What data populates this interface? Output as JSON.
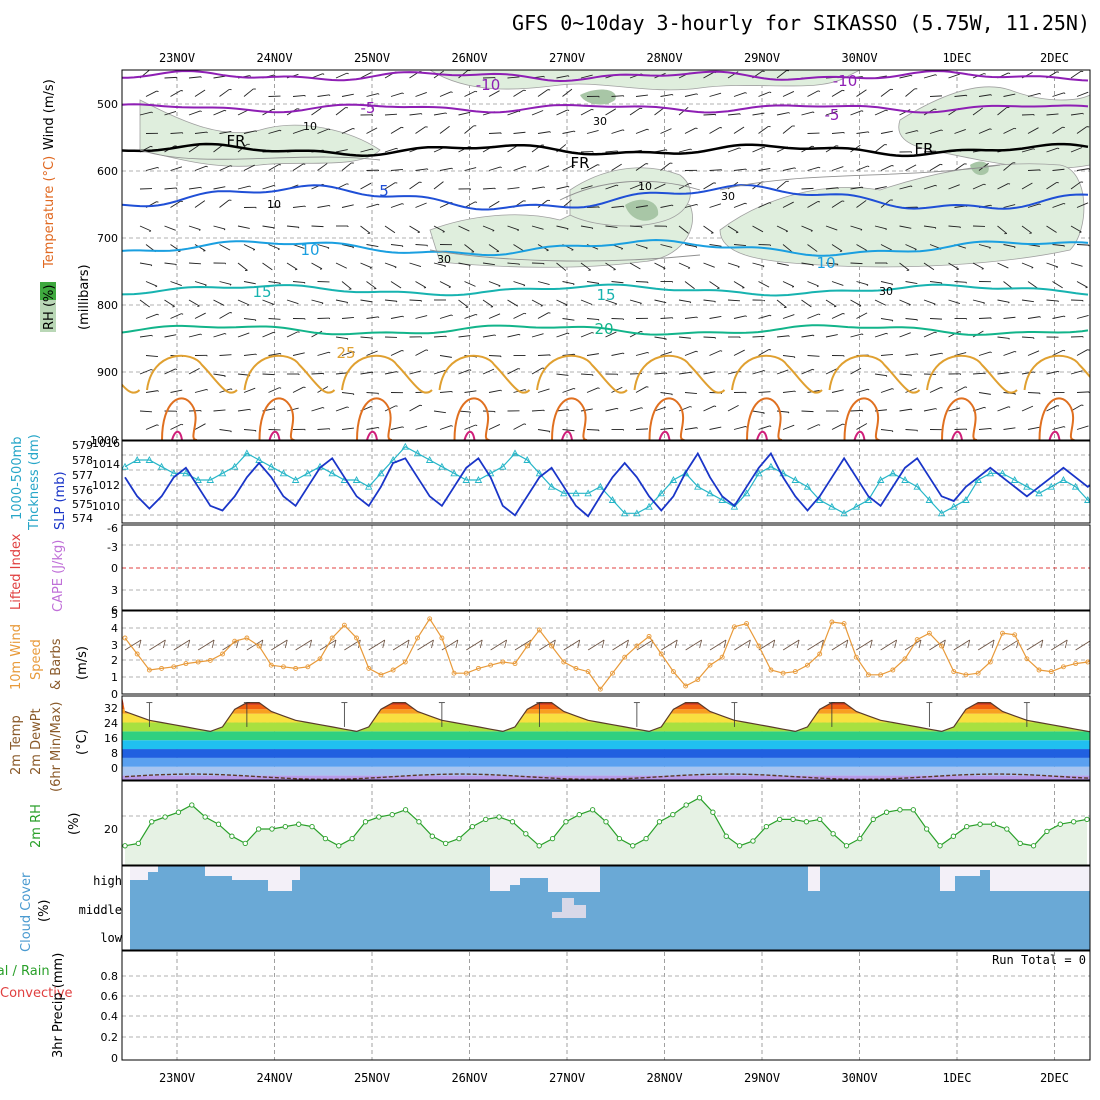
{
  "title": "GFS 0~10day 3-hourly for SIKASSO (5.75W, 11.25N)",
  "date_labels": [
    "23NOV",
    "24NOV",
    "25NOV",
    "26NOV",
    "27NOV",
    "28NOV",
    "29NOV",
    "30NOV",
    "1DEC",
    "2DEC"
  ],
  "colors": {
    "purple": "#8e1fb4",
    "black": "#000000",
    "blue": "#1f4fd6",
    "lightblue": "#1a9fe0",
    "teal": "#17b3b0",
    "green": "#12b48a",
    "orange": "#e0a030",
    "darkorange": "#e07020",
    "magenta": "#d0207a",
    "rh_fill": "#dfeedd",
    "rh_dark": "#a8c6a6",
    "cloud": "#6aa9d6",
    "cloud_empty": "#f3f0f8",
    "slp": "#1a35c8",
    "thick": "#27b6c8",
    "wind": "#e89a3a",
    "rh2m": "#2aa02a"
  },
  "panels": {
    "upper": {
      "ylabel_wind": "Wind (m/s)",
      "ylabel_temp": "Temperature (°C)",
      "ylabel_rh": "RH (%)",
      "ylabel_units": "(millibars)",
      "yticks": [
        "500",
        "600",
        "700",
        "800",
        "900",
        "1000"
      ],
      "contours": [
        {
          "level": "-10",
          "color": "purple",
          "labels": [
            "-10",
            "-10"
          ]
        },
        {
          "level": "-5",
          "color": "purple",
          "labels": [
            "-5",
            "-5"
          ]
        },
        {
          "level": "FR",
          "color": "black",
          "labels": [
            "FR",
            "FR",
            "FR"
          ]
        },
        {
          "level": "5",
          "color": "blue",
          "labels": [
            "5"
          ]
        },
        {
          "level": "10",
          "color": "lightblue",
          "labels": [
            "10",
            "10"
          ]
        },
        {
          "level": "15",
          "color": "teal",
          "labels": [
            "15",
            "15"
          ]
        },
        {
          "level": "20",
          "color": "green",
          "labels": [
            "20"
          ]
        },
        {
          "level": "25",
          "color": "orange",
          "labels": [
            "25"
          ]
        }
      ],
      "rh_labels": [
        "10",
        "30",
        "10",
        "30",
        "10",
        "30",
        "30"
      ]
    },
    "thickness": {
      "ylabel_a": "1000-500mb",
      "ylabel_b": "Thckness (dm)",
      "ylabel_c": "SLP (mb)",
      "yticks_left": [
        "574",
        "575",
        "576",
        "577",
        "578",
        "579"
      ],
      "yticks_right": [
        "1010",
        "1012",
        "1014",
        "1016"
      ]
    },
    "cape": {
      "ylabel_a": "Lifted Index",
      "ylabel_b": "CAPE (J/kg)",
      "yticks": [
        "-6",
        "-3",
        "0",
        "3",
        "6"
      ]
    },
    "wind10m": {
      "ylabel_a": "10m Wind",
      "ylabel_b": "Speed",
      "ylabel_c": "& Barbs",
      "ylabel_units": "(m/s)",
      "yticks": [
        "0",
        "1",
        "2",
        "3",
        "4",
        "5"
      ]
    },
    "temp2m": {
      "ylabel_a": "2m Temp",
      "ylabel_b": "2m DewPt",
      "ylabel_c": "(6hr Min/Max)",
      "ylabel_units": "(°C)",
      "yticks": [
        "0",
        "8",
        "16",
        "24",
        "32"
      ]
    },
    "rh2m": {
      "ylabel_a": "2m RH",
      "ylabel_units": "(%)",
      "yticks": [
        "20"
      ]
    },
    "cloud": {
      "ylabel_a": "Cloud Cover",
      "ylabel_units": "(%)",
      "levels": [
        "high",
        "middle",
        "low"
      ]
    },
    "precip": {
      "ylabel_a": "Total / Rain",
      "ylabel_b": "Convective",
      "ylabel_c": "3hr Precip (mm)",
      "yticks": [
        "0",
        "0.2",
        "0.4",
        "0.6",
        "0.8"
      ],
      "run_total": "Run Total = 0"
    }
  },
  "chart_data": [
    {
      "type": "line",
      "name": "slp",
      "x": "3-hourly steps from 22NOV 12Z",
      "ylabel": "SLP (mb)",
      "ylim": [
        1008.5,
        1016.5
      ],
      "values": [
        1013,
        1011,
        1009.7,
        1011,
        1013,
        1014,
        1012,
        1010,
        1009.5,
        1011,
        1013,
        1014.5,
        1013,
        1011,
        1010,
        1012,
        1014,
        1015,
        1013,
        1011,
        1010,
        1012,
        1014.5,
        1015,
        1013,
        1011,
        1010,
        1012,
        1014,
        1015,
        1013,
        1010,
        1009,
        1011,
        1013,
        1014,
        1012,
        1010,
        1008.9,
        1011,
        1013,
        1014.5,
        1013,
        1011,
        1009.5,
        1011,
        1013.5,
        1015.5,
        1013,
        1011,
        1010,
        1012,
        1014,
        1015.5,
        1013,
        1011,
        1009.5,
        1011,
        1013,
        1015,
        1013,
        1011,
        1010,
        1012,
        1014,
        1015,
        1013,
        1011,
        1010.5,
        1012,
        1013,
        1014,
        1013,
        1012,
        1011,
        1012,
        1013,
        1014,
        1013,
        1012,
        1013
      ]
    },
    {
      "type": "line",
      "name": "thickness",
      "ylabel": "1000-500mb Thckness (dm)",
      "ylim": [
        573.5,
        579.2
      ],
      "values": [
        577.5,
        578,
        578,
        577.5,
        577,
        577,
        576.5,
        576.5,
        577,
        577.5,
        578.5,
        578,
        577.5,
        577,
        576.5,
        577,
        577.5,
        577,
        576.5,
        576.5,
        576,
        577,
        578,
        579,
        578.5,
        578,
        577.5,
        577,
        576.5,
        576.5,
        577,
        577.5,
        578.5,
        578,
        577,
        576,
        575.5,
        575.5,
        575.5,
        576,
        575,
        574,
        574,
        574.5,
        575.5,
        576.5,
        577,
        576,
        575.5,
        575,
        574.5,
        575.5,
        577,
        577.5,
        577,
        576.5,
        576,
        575,
        574.5,
        574,
        574.5,
        575,
        576.5,
        577,
        576.5,
        576,
        575,
        574,
        574.5,
        575,
        576.5,
        577,
        577,
        576.5,
        576,
        575.5,
        576,
        576.5,
        576,
        575,
        574
      ]
    },
    {
      "type": "line",
      "name": "lifted_index",
      "ylabel": "Lifted Index",
      "ylim": [
        -6,
        6
      ],
      "values": [
        0
      ]
    },
    {
      "type": "line",
      "name": "wind_speed_10m",
      "ylabel": "Speed (m/s)",
      "ylim": [
        0,
        5
      ],
      "values": [
        3.5,
        2.5,
        1.5,
        1.6,
        1.7,
        1.9,
        2,
        2.1,
        2.5,
        3.3,
        3.5,
        3,
        1.8,
        1.7,
        1.6,
        1.7,
        2.2,
        3.5,
        4.3,
        3.5,
        1.6,
        1.2,
        1.5,
        2,
        3.5,
        4.7,
        3.5,
        1.3,
        1.3,
        1.6,
        1.8,
        2,
        1.9,
        3,
        4,
        3,
        2,
        1.6,
        1.4,
        0.3,
        1.3,
        2.3,
        3,
        3.6,
        2.5,
        1.4,
        0.5,
        0.9,
        1.8,
        2.3,
        4.2,
        4.4,
        3,
        1.5,
        1.3,
        1.4,
        1.8,
        2.5,
        4.5,
        4.4,
        2.3,
        1.2,
        1.2,
        1.5,
        2.2,
        3.4,
        3.8,
        3,
        1.4,
        1.2,
        1.3,
        2,
        3.8,
        3.7,
        2.2,
        1.5,
        1.4,
        1.7,
        1.9,
        2,
        2.5
      ]
    },
    {
      "type": "line",
      "name": "temp_2m",
      "ylabel": "Temperature (°C)",
      "ylim": [
        -2,
        36
      ],
      "values": [
        29,
        27,
        25,
        24,
        23,
        22,
        21,
        20,
        22,
        30,
        33,
        33,
        29,
        27,
        25,
        24,
        23,
        22,
        21,
        20,
        22,
        30,
        33,
        33,
        29,
        27,
        25,
        24,
        23,
        22,
        21,
        20,
        22,
        30,
        33,
        33,
        29,
        27,
        25,
        24,
        23,
        22,
        21,
        20,
        22,
        30,
        33,
        33,
        29,
        27,
        25,
        24,
        23,
        22,
        21,
        20,
        22,
        30,
        33,
        33,
        29,
        27,
        25,
        24,
        23,
        22,
        21,
        20,
        22,
        30,
        33,
        33,
        29,
        27,
        25,
        24,
        23,
        22,
        21,
        20,
        19
      ]
    },
    {
      "type": "line",
      "name": "rh_2m",
      "ylabel": "(%)",
      "ylim": [
        5,
        40
      ],
      "values": [
        13,
        14,
        23,
        25,
        27,
        30,
        25,
        22,
        17,
        14,
        20,
        20,
        21,
        22,
        21,
        16,
        13,
        16,
        23,
        25,
        26,
        28,
        23,
        17,
        14,
        16,
        21,
        24,
        25,
        23,
        18,
        13,
        16,
        23,
        26,
        28,
        23,
        16,
        13,
        16,
        23,
        26,
        30,
        33,
        27,
        17,
        13,
        15,
        21,
        24,
        24,
        23,
        24,
        18,
        13,
        16,
        24,
        27,
        28,
        28,
        20,
        13,
        17,
        21,
        22,
        22,
        20,
        14,
        13,
        19,
        22,
        23,
        24
      ]
    },
    {
      "type": "bar",
      "name": "precip_3hr",
      "ylabel": "3hr Precip (mm)",
      "ylim": [
        0,
        1
      ],
      "values": [
        0
      ]
    }
  ]
}
